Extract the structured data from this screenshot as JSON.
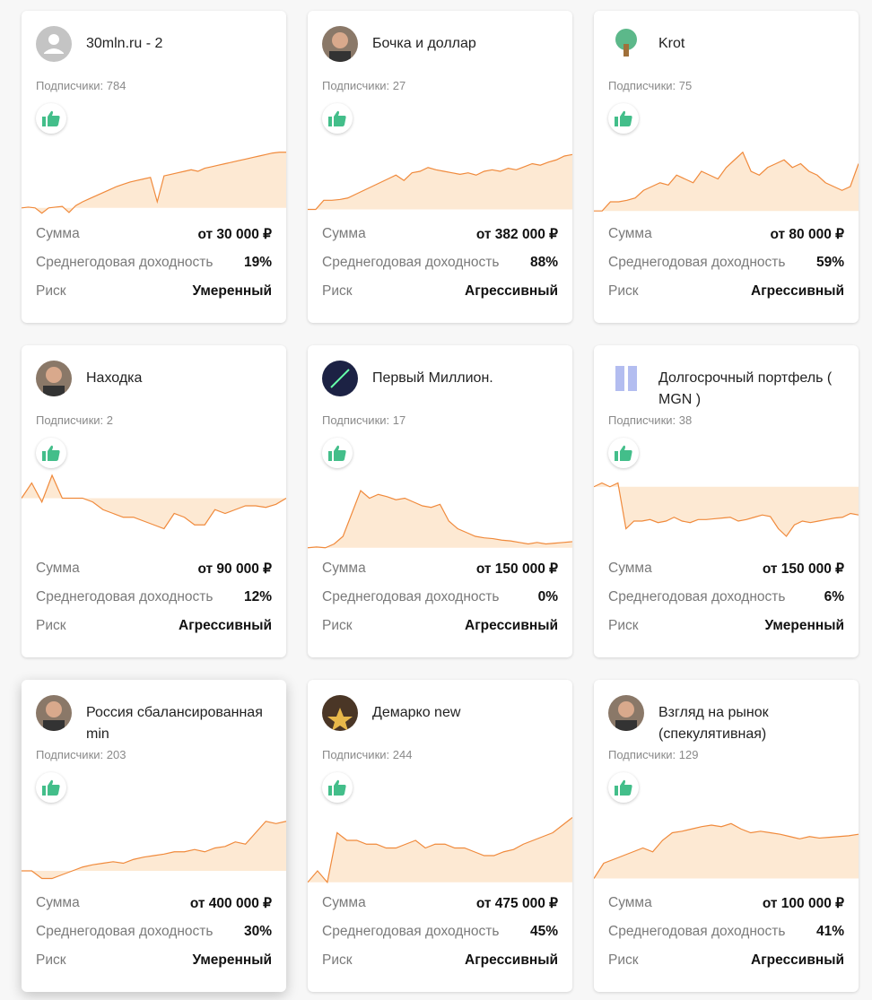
{
  "labels": {
    "sum": "Сумма",
    "yield": "Среднегодовая доходность",
    "risk": "Риск"
  },
  "colors": {
    "line": "#f08a3c",
    "fill": "#fde3c8",
    "like": "#43be8a"
  },
  "cards": [
    {
      "title": "30mln.ru - 2",
      "subscribers": "Подписчики: 784",
      "sum": "от 30 000 ₽",
      "yield": "19%",
      "risk": "Умеренный",
      "avatar": "default-user",
      "chart": [
        12,
        13,
        12,
        5,
        12,
        13,
        14,
        6,
        15,
        20,
        24,
        28,
        32,
        36,
        40,
        43,
        46,
        48,
        50,
        52,
        20,
        54,
        56,
        58,
        60,
        62,
        60,
        64,
        66,
        68,
        70,
        72,
        74,
        76,
        78,
        80,
        82,
        84,
        85,
        85
      ]
    },
    {
      "title": "Бочка и доллар",
      "subscribers": "Подписчики: 27",
      "sum": "от 382 000 ₽",
      "yield": "88%",
      "risk": "Агрессивный",
      "avatar": "photo",
      "chart": [
        10,
        10,
        22,
        22,
        23,
        25,
        30,
        35,
        40,
        45,
        50,
        55,
        48,
        58,
        60,
        65,
        62,
        60,
        58,
        56,
        58,
        55,
        60,
        62,
        60,
        64,
        62,
        66,
        70,
        68,
        72,
        75,
        80,
        82
      ]
    },
    {
      "title": "Krot",
      "subscribers": "Подписчики: 75",
      "sum": "от 80 000 ₽",
      "yield": "59%",
      "risk": "Агрессивный",
      "avatar": "tree",
      "chart": [
        8,
        8,
        20,
        20,
        22,
        25,
        35,
        40,
        45,
        42,
        55,
        50,
        45,
        60,
        55,
        50,
        65,
        75,
        85,
        60,
        55,
        65,
        70,
        75,
        65,
        70,
        60,
        55,
        45,
        40,
        35,
        40,
        70
      ]
    },
    {
      "title": "Находка",
      "subscribers": "Подписчики: 2",
      "sum": "от 90 000 ₽",
      "yield": "12%",
      "risk": "Агрессивный",
      "avatar": "photo",
      "chart": [
        70,
        90,
        65,
        100,
        70,
        70,
        70,
        65,
        55,
        50,
        45,
        45,
        40,
        35,
        30,
        50,
        45,
        35,
        35,
        55,
        50,
        55,
        60,
        60,
        58,
        62,
        70
      ]
    },
    {
      "title": "Первый Миллион.",
      "subscribers": "Подписчики: 17",
      "sum": "от 150 000 ₽",
      "yield": "0%",
      "risk": "Агрессивный",
      "avatar": "photo-dark",
      "chart": [
        5,
        6,
        5,
        10,
        20,
        50,
        80,
        70,
        75,
        72,
        68,
        70,
        65,
        60,
        58,
        62,
        40,
        30,
        25,
        20,
        18,
        17,
        15,
        14,
        12,
        10,
        12,
        10,
        11,
        12,
        13
      ]
    },
    {
      "title": "Долгосрочный портфель ( MGN )",
      "subscribers": "Подписчики: 38",
      "sum": "от 150 000 ₽",
      "yield": "6%",
      "risk": "Умеренный",
      "avatar": "logo",
      "chart": [
        85,
        90,
        85,
        90,
        30,
        40,
        40,
        42,
        38,
        40,
        45,
        40,
        38,
        42,
        42,
        43,
        44,
        45,
        40,
        42,
        45,
        48,
        46,
        30,
        20,
        35,
        40,
        38,
        40,
        42,
        44,
        45,
        50,
        48
      ]
    },
    {
      "title": "Россия сбалансированная min",
      "subscribers": "Подписчики: 203",
      "sum": "от 400 000 ₽",
      "yield": "30%",
      "risk": "Умеренный",
      "avatar": "photo",
      "chart": [
        20,
        20,
        10,
        10,
        15,
        20,
        25,
        28,
        30,
        32,
        30,
        35,
        38,
        40,
        42,
        45,
        45,
        48,
        45,
        50,
        52,
        58,
        55,
        70,
        85,
        82,
        85
      ]
    },
    {
      "title": "Демарко new",
      "subscribers": "Подписчики: 244",
      "sum": "от 475 000 ₽",
      "yield": "45%",
      "risk": "Агрессивный",
      "avatar": "star",
      "chart": [
        5,
        20,
        5,
        70,
        60,
        60,
        55,
        55,
        50,
        50,
        55,
        60,
        50,
        55,
        55,
        50,
        50,
        45,
        40,
        40,
        45,
        48,
        55,
        60,
        65,
        70,
        80,
        90
      ]
    },
    {
      "title": "Взгляд на рынок (спекулятивная)",
      "subscribers": "Подписчики: 129",
      "sum": "от 100 000 ₽",
      "yield": "41%",
      "risk": "Агрессивный",
      "avatar": "photo",
      "chart": [
        10,
        30,
        35,
        40,
        45,
        50,
        45,
        60,
        70,
        72,
        75,
        78,
        80,
        78,
        82,
        75,
        70,
        72,
        70,
        68,
        65,
        62,
        65,
        63,
        64,
        65,
        66,
        68
      ]
    }
  ]
}
